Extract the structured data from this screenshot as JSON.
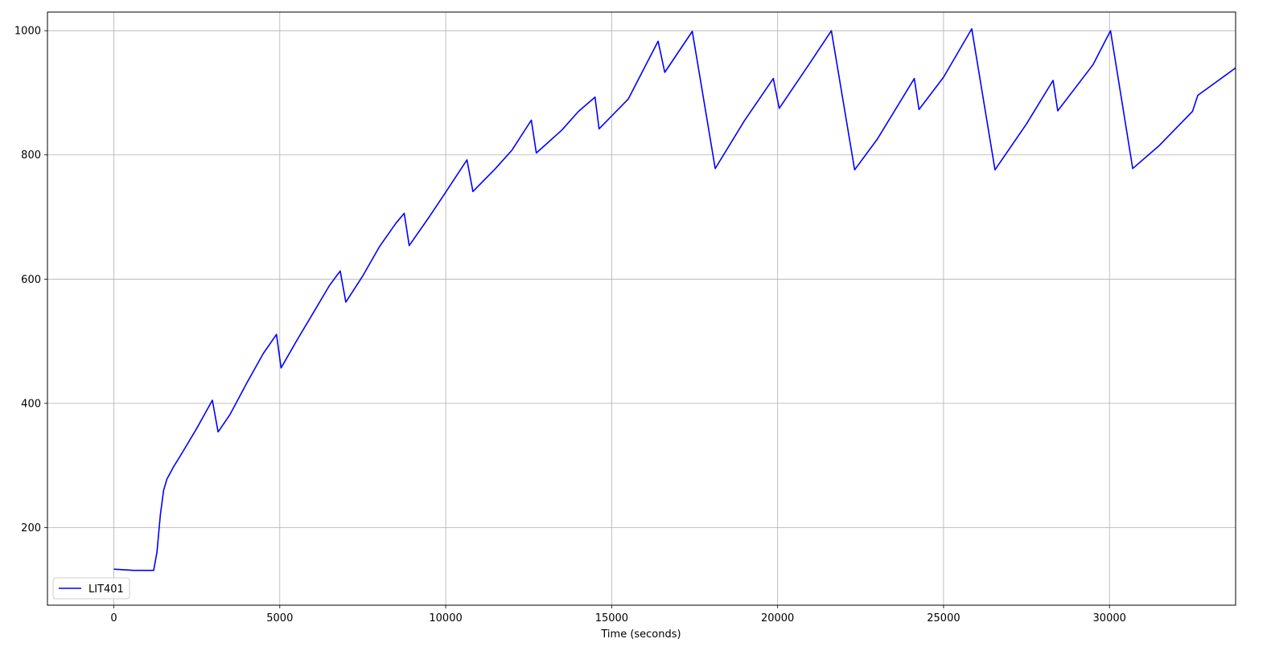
{
  "chart_data": {
    "type": "line",
    "title": "",
    "xlabel": "Time (seconds)",
    "ylabel": "",
    "xlim": [
      -2000,
      33800
    ],
    "ylim": [
      75,
      1030
    ],
    "grid": true,
    "legend_placement": "bottom-left",
    "x_ticks": [
      0,
      5000,
      10000,
      15000,
      20000,
      25000,
      30000
    ],
    "x_tick_labels": [
      "0",
      "5000",
      "10000",
      "15000",
      "20000",
      "25000",
      "30000"
    ],
    "y_ticks": [
      200,
      400,
      600,
      800,
      1000
    ],
    "y_tick_labels": [
      "200",
      "400",
      "600",
      "800",
      "1000"
    ],
    "series": [
      {
        "name": "LIT401",
        "color": "#0000ff",
        "x": [
          0,
          600,
          1200,
          1300,
          1400,
          1500,
          1600,
          1800,
          2000,
          2500,
          2970,
          3140,
          3500,
          4000,
          4500,
          4900,
          5040,
          5500,
          6000,
          6500,
          6820,
          6990,
          7500,
          8000,
          8500,
          8750,
          8900,
          9500,
          10000,
          10640,
          10820,
          11500,
          12000,
          12580,
          12730,
          13500,
          14000,
          14500,
          14620,
          15500,
          16400,
          16600,
          17430,
          18120,
          19000,
          19870,
          20050,
          21000,
          21620,
          22320,
          23000,
          24120,
          24260,
          25000,
          25850,
          26550,
          27500,
          28300,
          28440,
          29500,
          30030,
          30700,
          31500,
          32500,
          32660,
          33800
        ],
        "y": [
          133,
          131,
          131,
          160,
          220,
          260,
          278,
          298,
          315,
          360,
          405,
          354,
          382,
          432,
          480,
          511,
          457,
          500,
          545,
          590,
          613,
          563,
          605,
          652,
          690,
          706,
          654,
          700,
          740,
          792,
          741,
          778,
          808,
          856,
          803,
          840,
          870,
          893,
          842,
          890,
          983,
          933,
          999,
          778,
          855,
          923,
          875,
          950,
          1000,
          776,
          825,
          923,
          873,
          925,
          1003,
          776,
          850,
          920,
          871,
          945,
          1000,
          778,
          815,
          870,
          896,
          940
        ]
      }
    ]
  },
  "legend": {
    "label": "LIT401"
  }
}
